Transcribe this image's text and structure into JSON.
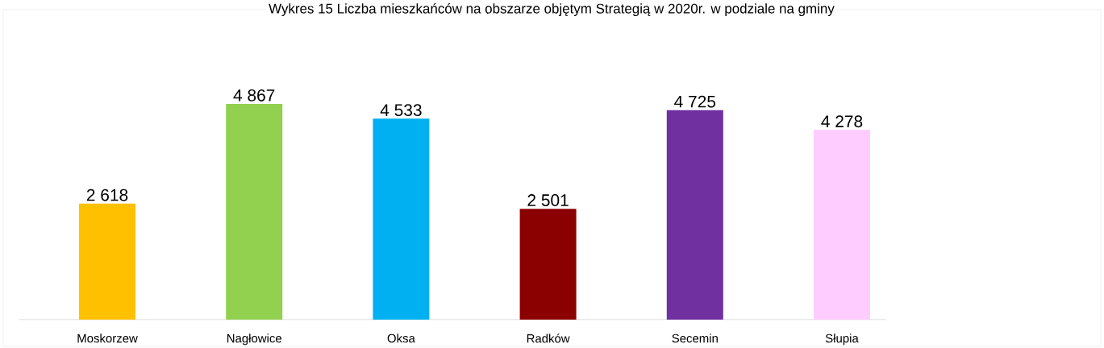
{
  "chart_data": {
    "type": "bar",
    "title": "Wykres 15 Liczba mieszkańców na obszarze objętym Strategią w 2020r. w podziale na gminy",
    "categories": [
      "Moskorzew",
      "Nagłowice",
      "Oksa",
      "Radków",
      "Secemin",
      "Słupia"
    ],
    "values": [
      2618,
      4867,
      4533,
      2501,
      4725,
      4278
    ],
    "colors": [
      "#ffc000",
      "#92d050",
      "#00b0f0",
      "#8b0000",
      "#7030a0",
      "#ffccff"
    ],
    "value_labels": [
      "2 618",
      "4 867",
      "4 533",
      "2 501",
      "4 725",
      "4 278"
    ]
  }
}
